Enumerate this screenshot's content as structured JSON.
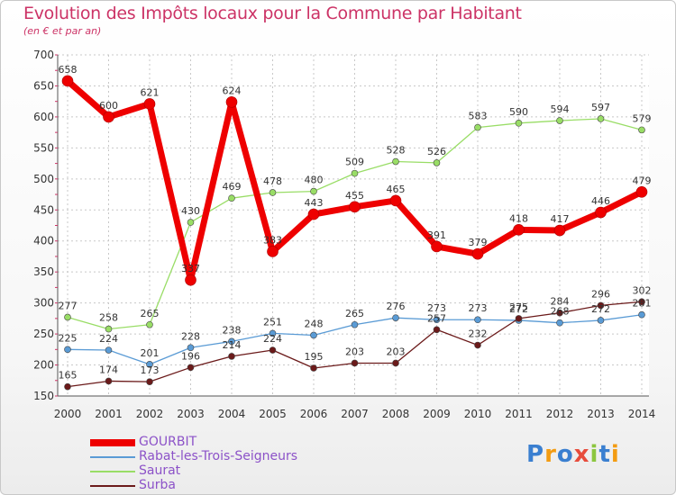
{
  "header": {
    "title": "Evolution des Impôts locaux pour la Commune par Habitant",
    "subtitle": "(en € et par an)"
  },
  "logo": {
    "text": "Proxiti"
  },
  "chart_data": {
    "type": "line",
    "title": "Evolution des Impôts locaux pour la Commune par Habitant",
    "subtitle": "(en € et par an)",
    "xlabel": "",
    "ylabel": "",
    "x": [
      "2000",
      "2001",
      "2002",
      "2003",
      "2004",
      "2005",
      "2006",
      "2007",
      "2008",
      "2009",
      "2010",
      "2011",
      "2012",
      "2013",
      "2014"
    ],
    "ylim": [
      150,
      700
    ],
    "yticks": [
      150,
      200,
      250,
      300,
      350,
      400,
      450,
      500,
      550,
      600,
      650,
      700
    ],
    "grid": true,
    "legend_position": "bottom-left",
    "series": [
      {
        "name": "GOURBIT",
        "color": "#ee0000",
        "values": [
          658,
          600,
          621,
          337,
          624,
          383,
          443,
          455,
          465,
          391,
          379,
          418,
          417,
          446,
          479
        ]
      },
      {
        "name": "Rabat-les-Trois-Seigneurs",
        "color": "#5a9bd5",
        "values": [
          225,
          224,
          201,
          228,
          238,
          251,
          248,
          265,
          276,
          273,
          273,
          272,
          268,
          272,
          281
        ]
      },
      {
        "name": "Saurat",
        "color": "#99dd66",
        "values": [
          277,
          258,
          265,
          430,
          469,
          478,
          480,
          509,
          528,
          526,
          583,
          590,
          594,
          597,
          579
        ]
      },
      {
        "name": "Surba",
        "color": "#6b1a1a",
        "values": [
          165,
          174,
          173,
          196,
          214,
          224,
          195,
          203,
          203,
          257,
          232,
          275,
          284,
          296,
          302
        ]
      }
    ]
  }
}
